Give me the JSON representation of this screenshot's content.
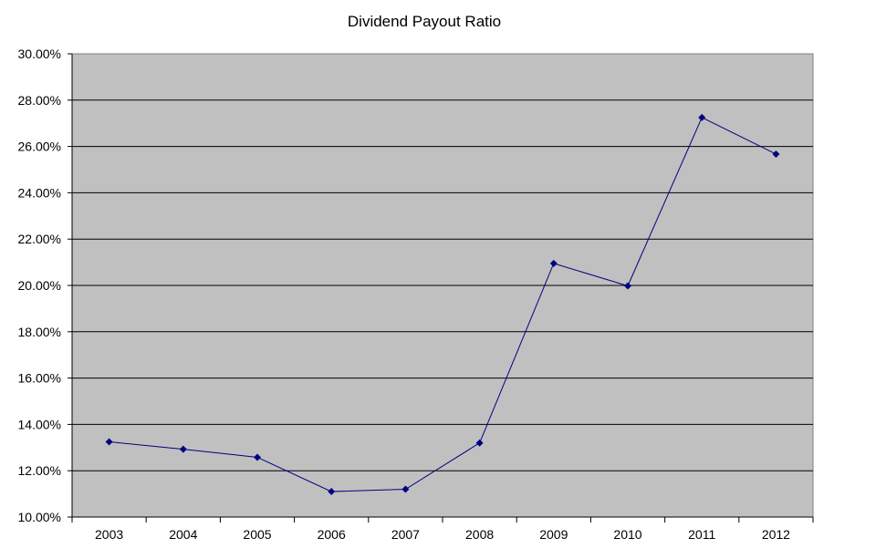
{
  "chart_data": {
    "type": "line",
    "title": "Dividend Payout Ratio",
    "xlabel": "",
    "ylabel": "",
    "categories": [
      "2003",
      "2004",
      "2005",
      "2006",
      "2007",
      "2008",
      "2009",
      "2010",
      "2011",
      "2012"
    ],
    "series": [
      {
        "values": [
          13.25,
          12.93,
          12.58,
          11.1,
          11.2,
          13.2,
          20.95,
          19.98,
          27.25,
          25.67
        ]
      }
    ],
    "ylim": [
      10,
      30
    ],
    "yticks": [
      10,
      12,
      14,
      16,
      18,
      20,
      22,
      24,
      26,
      28,
      30
    ],
    "ytick_labels": [
      "10.00%",
      "12.00%",
      "14.00%",
      "16.00%",
      "18.00%",
      "20.00%",
      "22.00%",
      "24.00%",
      "26.00%",
      "28.00%",
      "30.00%"
    ],
    "grid": "horizontal",
    "legend": "none",
    "colors": {
      "plot_background": "#c0c0c0",
      "line": "#000080",
      "marker": "#000080",
      "grid": "#000000"
    }
  }
}
